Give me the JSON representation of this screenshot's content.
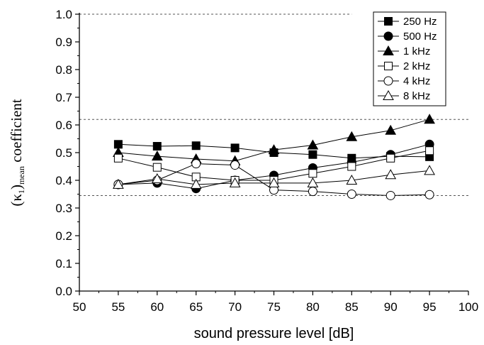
{
  "chart_data": {
    "type": "line",
    "xlabel": "sound pressure level [dB]",
    "ylabel": {
      "symbol": "(κ",
      "subscript_index": "1",
      "close": ")",
      "subscript": "mean",
      "suffix": " coefficient"
    },
    "xlim": [
      50,
      100
    ],
    "ylim": [
      0.0,
      1.0
    ],
    "x_ticks": [
      "50",
      "55",
      "60",
      "65",
      "70",
      "75",
      "80",
      "85",
      "90",
      "95",
      "100"
    ],
    "y_ticks": [
      "0.0",
      "0.1",
      "0.2",
      "0.3",
      "0.4",
      "0.5",
      "0.6",
      "0.7",
      "0.8",
      "0.9",
      "1.0"
    ],
    "grid": false,
    "legend_position": "top-right",
    "reference_lines": [
      {
        "y": 1.0,
        "x_end": 85
      },
      {
        "y": 0.62
      },
      {
        "y": 0.345
      }
    ],
    "x": [
      55,
      60,
      65,
      70,
      75,
      80,
      85,
      90,
      95
    ],
    "series": [
      {
        "name": "250 Hz",
        "marker": "square-filled",
        "values": [
          0.53,
          0.523,
          0.525,
          0.517,
          0.5,
          0.493,
          0.48,
          0.487,
          0.485
        ]
      },
      {
        "name": "500 Hz",
        "marker": "circle-filled",
        "values": [
          0.385,
          0.39,
          0.37,
          0.4,
          0.418,
          0.445,
          0.465,
          0.493,
          0.53
        ]
      },
      {
        "name": "1 kHz",
        "marker": "triangle-filled",
        "values": [
          0.5,
          0.487,
          0.477,
          0.47,
          0.51,
          0.527,
          0.557,
          0.58,
          0.62
        ]
      },
      {
        "name": "2 kHz",
        "marker": "square-open",
        "values": [
          0.48,
          0.447,
          0.412,
          0.4,
          0.4,
          0.425,
          0.45,
          0.48,
          0.507
        ]
      },
      {
        "name": "4 kHz",
        "marker": "circle-open",
        "values": [
          0.385,
          0.4,
          0.46,
          0.455,
          0.365,
          0.36,
          0.35,
          0.345,
          0.348
        ]
      },
      {
        "name": "8 kHz",
        "marker": "triangle-open",
        "values": [
          0.385,
          0.405,
          0.385,
          0.39,
          0.39,
          0.39,
          0.4,
          0.42,
          0.435
        ]
      }
    ]
  }
}
